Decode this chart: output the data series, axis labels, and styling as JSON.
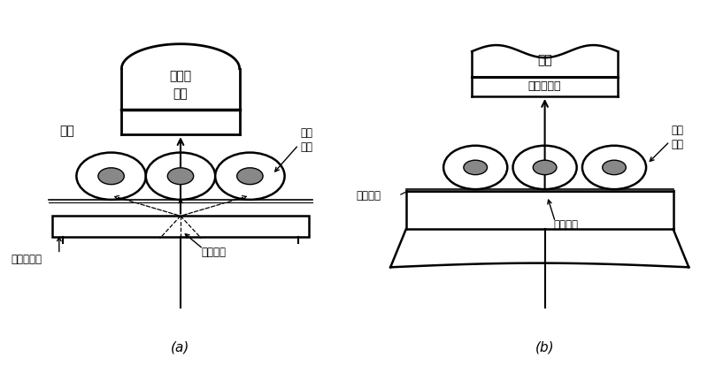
{
  "fig_width": 8.0,
  "fig_height": 4.22,
  "dpi": 100,
  "bg_color": "#ffffff",
  "line_color": "#000000",
  "label_a": "(a)",
  "label_b": "(b)",
  "text_a": {
    "pmt_line1": "光电倍",
    "pmt_line2": "增管",
    "cells_label": "细胞\n样品",
    "photon_label": "光子",
    "scintillator_label": "塑料闪烁体",
    "microbeam_label": "微束出口"
  },
  "text_b": {
    "lens_label": "物镜",
    "chamber_label": "气体电离室",
    "cells_label": "细胞\n样品",
    "film_label": "聚酯薄膜",
    "microbeam_label": "微束出口"
  }
}
